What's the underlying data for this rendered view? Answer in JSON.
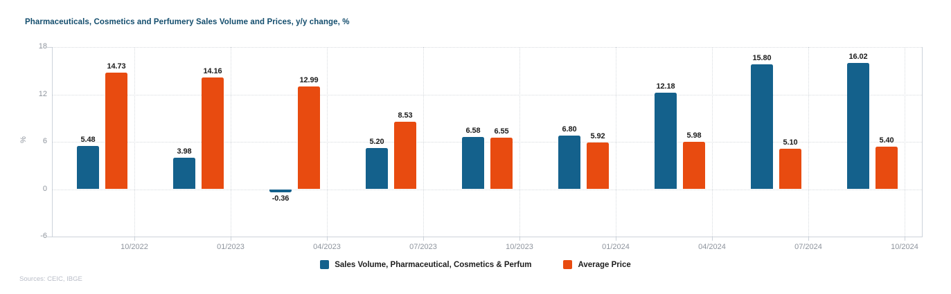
{
  "title": "Pharmaceuticals, Cosmetics and Perfumery Sales Volume and Prices, y/y change, %",
  "sources": "Sources: CEIC, IBGE",
  "chart_data": {
    "type": "bar",
    "categories": [
      "10/2022",
      "01/2023",
      "04/2023",
      "07/2023",
      "10/2023",
      "01/2024",
      "04/2024",
      "07/2024",
      "10/2024"
    ],
    "series": [
      {
        "name": "Sales Volume, Pharmaceutical, Cosmetics & Perfum",
        "color": "#14618c",
        "values": [
          5.48,
          3.98,
          -0.36,
          5.2,
          6.58,
          6.8,
          12.18,
          15.8,
          16.02
        ]
      },
      {
        "name": "Average Price",
        "color": "#e84b10",
        "values": [
          14.73,
          14.16,
          12.99,
          8.53,
          6.55,
          5.92,
          5.98,
          5.1,
          5.4
        ]
      }
    ],
    "ylabel": "%",
    "ylim": [
      -6,
      18
    ],
    "yticks": [
      18,
      12,
      6,
      0,
      -6
    ],
    "grid": "dotted",
    "legend_position": "bottom-center",
    "value_labels_decimals": 2
  }
}
